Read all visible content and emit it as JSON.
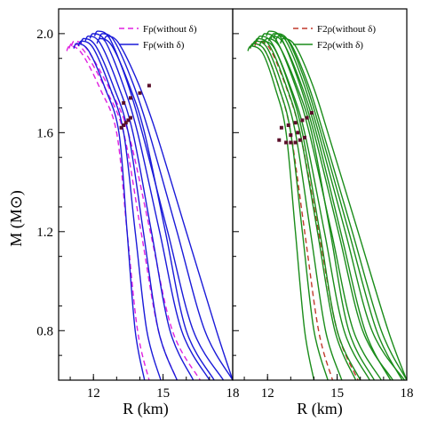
{
  "ylabel": "M (M⊙)",
  "colors": {
    "magenta": "#e020e0",
    "blue": "#1a1ad8",
    "red": "#c0392b",
    "green": "#1a8c1a",
    "marker": "#5a0f2a"
  },
  "chart_data": [
    {
      "type": "line",
      "title": "",
      "xlabel": "R (km)",
      "ylabel": "M (M⊙)",
      "xlim": [
        10.5,
        18
      ],
      "ylim": [
        0.6,
        2.1
      ],
      "xticks": [
        12,
        15,
        18
      ],
      "yticks": [
        0.8,
        1.2,
        1.6,
        2.0
      ],
      "legend_position": "top-right",
      "series": [
        {
          "name": "Fρ(without δ)",
          "style": "dashed",
          "color": "#e020e0",
          "curves": [
            {
              "rmax": 11.0,
              "mmax": 1.95,
              "r16": 13.0,
              "r08": 13.9,
              "r06": 14.4
            },
            {
              "rmax": 11.1,
              "mmax": 1.96,
              "r16": 13.3,
              "r08": 14.8,
              "r06": 15.6
            },
            {
              "rmax": 11.2,
              "mmax": 1.97,
              "r16": 13.5,
              "r08": 15.4,
              "r06": 16.6
            }
          ]
        },
        {
          "name": "Fρ(with δ)",
          "style": "solid",
          "color": "#1a1ad8",
          "curves": [
            {
              "rmax": 11.3,
              "mmax": 1.96,
              "r16": 13.1,
              "r08": 13.8,
              "r06": 14.2
            },
            {
              "rmax": 11.5,
              "mmax": 1.97,
              "r16": 13.3,
              "r08": 14.3,
              "r06": 14.9
            },
            {
              "rmax": 11.6,
              "mmax": 1.98,
              "r16": 13.5,
              "r08": 14.8,
              "r06": 15.6
            },
            {
              "rmax": 11.8,
              "mmax": 1.99,
              "r16": 13.7,
              "r08": 15.3,
              "r06": 16.3
            },
            {
              "rmax": 12.0,
              "mmax": 2.0,
              "r16": 13.9,
              "r08": 15.8,
              "r06": 17.0
            },
            {
              "rmax": 12.2,
              "mmax": 2.01,
              "r16": 14.1,
              "r08": 16.3,
              "r06": 17.6
            },
            {
              "rmax": 12.4,
              "mmax": 2.0,
              "r16": 14.4,
              "r08": 16.8,
              "r06": 18.0
            },
            {
              "rmax": 12.6,
              "mmax": 1.99,
              "r16": 14.7,
              "r08": 17.3,
              "r06": 18.0
            },
            {
              "rmax": 12.3,
              "mmax": 1.98,
              "r16": 14.2,
              "r08": 16.0,
              "r06": 17.2
            }
          ]
        }
      ],
      "markers": [
        {
          "x": 13.2,
          "y": 1.62
        },
        {
          "x": 13.3,
          "y": 1.63
        },
        {
          "x": 13.4,
          "y": 1.64
        },
        {
          "x": 13.5,
          "y": 1.65
        },
        {
          "x": 13.6,
          "y": 1.66
        },
        {
          "x": 13.3,
          "y": 1.72
        },
        {
          "x": 13.6,
          "y": 1.74
        },
        {
          "x": 14.0,
          "y": 1.76
        },
        {
          "x": 14.4,
          "y": 1.79
        }
      ]
    },
    {
      "type": "line",
      "title": "",
      "xlabel": "R (km)",
      "xlim": [
        10.5,
        18
      ],
      "ylim": [
        0.6,
        2.1
      ],
      "xticks": [
        12,
        15,
        18
      ],
      "legend_position": "top-right",
      "series": [
        {
          "name": "F2ρ(without δ)",
          "style": "dashed",
          "color": "#c0392b",
          "curves": [
            {
              "rmax": 11.4,
              "mmax": 1.96,
              "r16": 13.0,
              "r08": 14.2,
              "r06": 14.8
            },
            {
              "rmax": 11.6,
              "mmax": 1.97,
              "r16": 13.4,
              "r08": 15.0,
              "r06": 15.9
            }
          ]
        },
        {
          "name": "F2ρ(with δ)",
          "style": "solid",
          "color": "#1a8c1a",
          "curves": [
            {
              "rmax": 11.3,
              "mmax": 1.95,
              "r16": 12.8,
              "r08": 13.6,
              "r06": 14.0
            },
            {
              "rmax": 11.4,
              "mmax": 1.96,
              "r16": 13.0,
              "r08": 14.0,
              "r06": 14.6
            },
            {
              "rmax": 11.5,
              "mmax": 1.97,
              "r16": 13.2,
              "r08": 14.5,
              "r06": 15.2
            },
            {
              "rmax": 11.6,
              "mmax": 1.98,
              "r16": 13.4,
              "r08": 14.9,
              "r06": 15.8
            },
            {
              "rmax": 11.7,
              "mmax": 1.99,
              "r16": 13.6,
              "r08": 15.3,
              "r06": 16.4
            },
            {
              "rmax": 11.9,
              "mmax": 2.0,
              "r16": 13.8,
              "r08": 15.7,
              "r06": 16.9
            },
            {
              "rmax": 12.1,
              "mmax": 2.01,
              "r16": 14.0,
              "r08": 16.1,
              "r06": 17.4
            },
            {
              "rmax": 12.3,
              "mmax": 2.0,
              "r16": 14.2,
              "r08": 16.5,
              "r06": 17.9
            },
            {
              "rmax": 12.5,
              "mmax": 1.99,
              "r16": 14.4,
              "r08": 16.9,
              "r06": 18.0
            },
            {
              "rmax": 12.7,
              "mmax": 1.98,
              "r16": 14.6,
              "r08": 17.2,
              "r06": 18.0
            },
            {
              "rmax": 11.8,
              "mmax": 1.97,
              "r16": 13.5,
              "r08": 15.0,
              "r06": 16.0
            },
            {
              "rmax": 12.0,
              "mmax": 1.98,
              "r16": 13.9,
              "r08": 15.5,
              "r06": 16.6
            },
            {
              "rmax": 12.2,
              "mmax": 1.99,
              "r16": 14.1,
              "r08": 16.2,
              "r06": 17.3
            },
            {
              "rmax": 12.4,
              "mmax": 2.0,
              "r16": 14.3,
              "r08": 16.7,
              "r06": 17.8
            }
          ]
        }
      ],
      "markers": [
        {
          "x": 12.5,
          "y": 1.57
        },
        {
          "x": 12.8,
          "y": 1.56
        },
        {
          "x": 13.0,
          "y": 1.56
        },
        {
          "x": 13.2,
          "y": 1.56
        },
        {
          "x": 13.4,
          "y": 1.57
        },
        {
          "x": 13.6,
          "y": 1.58
        },
        {
          "x": 12.6,
          "y": 1.62
        },
        {
          "x": 12.9,
          "y": 1.63
        },
        {
          "x": 13.2,
          "y": 1.64
        },
        {
          "x": 13.5,
          "y": 1.65
        },
        {
          "x": 13.7,
          "y": 1.66
        },
        {
          "x": 13.9,
          "y": 1.68
        },
        {
          "x": 13.0,
          "y": 1.59
        },
        {
          "x": 13.3,
          "y": 1.6
        }
      ]
    }
  ]
}
